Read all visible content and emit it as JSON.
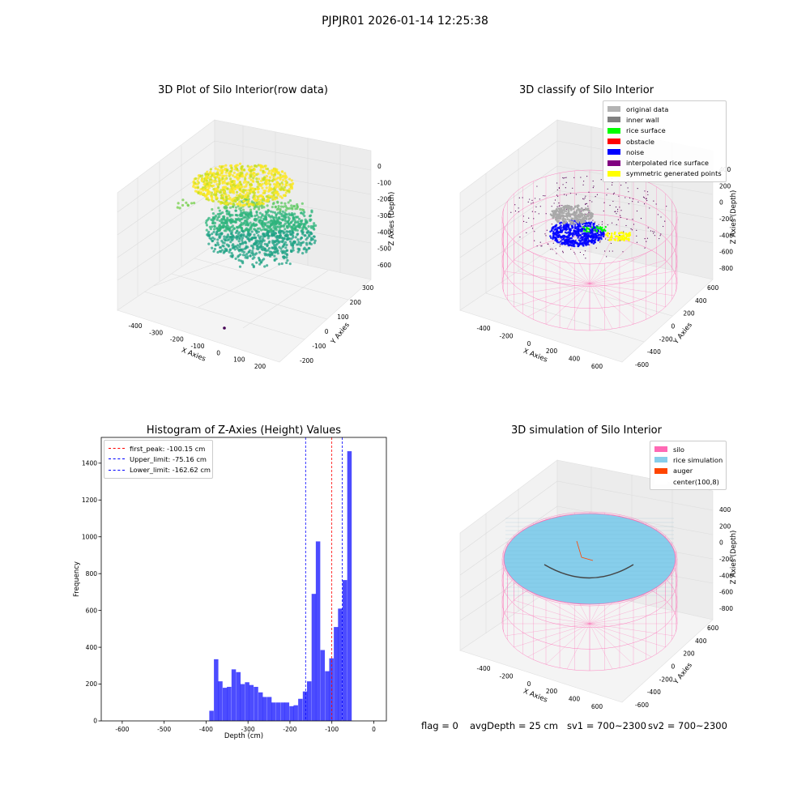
{
  "suptitle": "PJPJR01 2026-01-14 12:25:38",
  "panels": {
    "raw": {
      "title": "3D Plot of Silo Interior(row data)",
      "xlabel": "X Axies",
      "ylabel": "Y Axies",
      "zlabel": "Z Axies (Depth)",
      "xticks": [
        "-400",
        "-300",
        "-200",
        "-100",
        "0",
        "100",
        "200"
      ],
      "yticks": [
        "-200",
        "-100",
        "0",
        "100",
        "200",
        "300"
      ],
      "zticks": [
        "0",
        "-100",
        "-200",
        "-300",
        "-400",
        "-500",
        "-600"
      ]
    },
    "classify": {
      "title": "3D classify of Silo Interior",
      "xlabel": "X Axies",
      "ylabel": "Y Axies",
      "zlabel": "Z Axies (Depth)",
      "xticks": [
        "-400",
        "-200",
        "0",
        "200",
        "400",
        "600"
      ],
      "yticks": [
        "-600",
        "-400",
        "-200",
        "0",
        "200",
        "400",
        "600"
      ],
      "zticks": [
        "400",
        "200",
        "0",
        "-200",
        "-400",
        "-600",
        "-800"
      ],
      "legend": [
        {
          "label": "original data",
          "color": "#b3b3b3"
        },
        {
          "label": "inner wall",
          "color": "#808080"
        },
        {
          "label": "rice surface",
          "color": "#00ff00"
        },
        {
          "label": "obstacle",
          "color": "#ff0000"
        },
        {
          "label": "noise",
          "color": "#0000ff"
        },
        {
          "label": "interpolated rice surface",
          "color": "#800080"
        },
        {
          "label": "symmetric generated points",
          "color": "#ffff00"
        }
      ]
    },
    "simulation": {
      "title": "3D simulation of Silo Interior",
      "xlabel": "X Axies",
      "ylabel": "Y Axies",
      "zlabel": "Z Axies (Depth)",
      "xticks": [
        "-400",
        "-200",
        "0",
        "200",
        "400",
        "600"
      ],
      "yticks": [
        "-600",
        "-400",
        "-200",
        "0",
        "200",
        "400",
        "600"
      ],
      "zticks": [
        "400",
        "200",
        "0",
        "-200",
        "-400",
        "-600",
        "-800"
      ],
      "legend": [
        {
          "label": "silo",
          "color": "#ff69b4"
        },
        {
          "label": "rice simulation",
          "color": "#87ceeb"
        },
        {
          "label": "auger",
          "color": "#ff4500"
        },
        {
          "label": "center(100,8)",
          "color": "#ffffff"
        }
      ]
    }
  },
  "chart_data": {
    "type": "bar",
    "title": "Histogram of Z-Axies (Height) Values",
    "xlabel": "Depth (cm)",
    "ylabel": "Frequency",
    "xlim": [
      -650,
      30
    ],
    "ylim": [
      0,
      1540
    ],
    "xticks": [
      -600,
      -500,
      -400,
      -300,
      -200,
      -100,
      0
    ],
    "yticks": [
      0,
      200,
      400,
      600,
      800,
      1000,
      1200,
      1400
    ],
    "bar_color": "#0000ff",
    "bin_width": 10.6,
    "bins": [
      {
        "x": -387,
        "y": 55
      },
      {
        "x": -376,
        "y": 335
      },
      {
        "x": -366,
        "y": 215
      },
      {
        "x": -355,
        "y": 180
      },
      {
        "x": -345,
        "y": 185
      },
      {
        "x": -334,
        "y": 280
      },
      {
        "x": -323,
        "y": 265
      },
      {
        "x": -313,
        "y": 200
      },
      {
        "x": -302,
        "y": 210
      },
      {
        "x": -292,
        "y": 195
      },
      {
        "x": -281,
        "y": 185
      },
      {
        "x": -270,
        "y": 155
      },
      {
        "x": -260,
        "y": 130
      },
      {
        "x": -249,
        "y": 130
      },
      {
        "x": -239,
        "y": 100
      },
      {
        "x": -228,
        "y": 100
      },
      {
        "x": -217,
        "y": 100
      },
      {
        "x": -207,
        "y": 100
      },
      {
        "x": -196,
        "y": 80
      },
      {
        "x": -186,
        "y": 85
      },
      {
        "x": -175,
        "y": 120
      },
      {
        "x": -164,
        "y": 160
      },
      {
        "x": -154,
        "y": 215
      },
      {
        "x": -143,
        "y": 690
      },
      {
        "x": -133,
        "y": 975
      },
      {
        "x": -122,
        "y": 385
      },
      {
        "x": -111,
        "y": 270
      },
      {
        "x": -101,
        "y": 340
      },
      {
        "x": -90,
        "y": 510
      },
      {
        "x": -80,
        "y": 610
      },
      {
        "x": -69,
        "y": 765
      },
      {
        "x": -58,
        "y": 1465
      }
    ],
    "vlines": [
      {
        "label": "first_peak: -100.15 cm",
        "x": -100.15,
        "color": "#ff0000"
      },
      {
        "label": "Upper_limit: -75.16 cm",
        "x": -75.16,
        "color": "#0000ff"
      },
      {
        "label": "Lower_limit: -162.62 cm",
        "x": -162.62,
        "color": "#0000ff"
      }
    ],
    "legend_position": "upper-left",
    "grid": false
  },
  "status": {
    "flag": "flag = 0",
    "avg_depth": "avgDepth = 25 cm",
    "sv1": "sv1 = 700~2300",
    "sv2": "sv2 = 700~2300"
  }
}
